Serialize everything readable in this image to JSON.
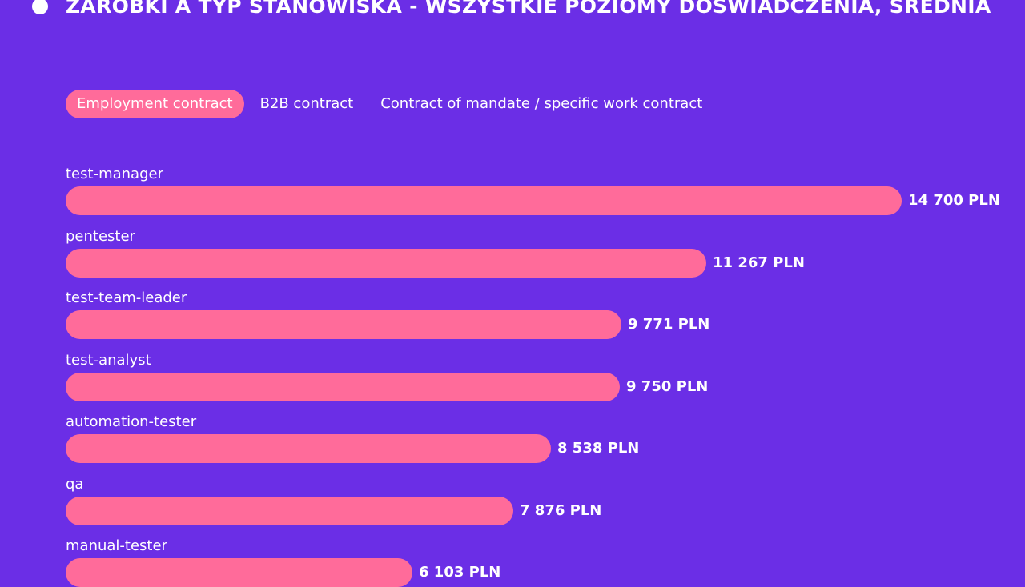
{
  "title": "ZAROBKI A TYP STANOWISKA - WSZYSTKIE POZIOMY DOŚWIADCZENIA, ŚREDNIA",
  "tabs": [
    {
      "label": "Employment contract",
      "active": true
    },
    {
      "label": "B2B contract",
      "active": false
    },
    {
      "label": "Contract of mandate / specific work contract",
      "active": false
    }
  ],
  "colors": {
    "background": "#6b2ee6",
    "bar": "#ff6b9a",
    "text": "#ffffff"
  },
  "chart_data": {
    "type": "bar",
    "orientation": "horizontal",
    "unit": "PLN",
    "categories": [
      "test-manager",
      "pentester",
      "test-team-leader",
      "test-analyst",
      "automation-tester",
      "qa",
      "manual-tester"
    ],
    "values": [
      14700,
      11267,
      9771,
      9750,
      8538,
      7876,
      6103
    ],
    "value_labels": [
      "14 700 PLN",
      "11 267 PLN",
      "9 771 PLN",
      "9 750 PLN",
      "8 538 PLN",
      "7 876 PLN",
      "6 103 PLN"
    ]
  }
}
